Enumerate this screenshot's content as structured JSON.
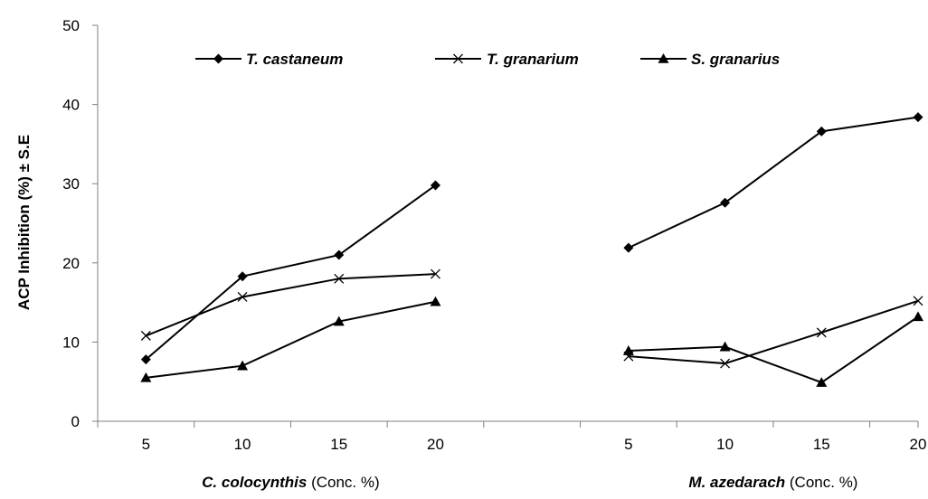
{
  "chart_data": {
    "type": "line",
    "ylabel": "ACP Inhibition (%) ± S.E",
    "ylim": [
      0,
      50
    ],
    "yticks": [
      0,
      10,
      20,
      30,
      40,
      50
    ],
    "grid": false,
    "legend_position": "top",
    "groups": [
      {
        "label_italic": "C. colocynthis",
        "label_rest": " (Conc. %)",
        "categories": [
          "5",
          "10",
          "15",
          "20"
        ],
        "series": [
          {
            "name": "T. castaneum",
            "marker": "diamond",
            "values": [
              7.8,
              18.3,
              21.0,
              29.8
            ]
          },
          {
            "name": "T. granarium",
            "marker": "x",
            "values": [
              10.8,
              15.7,
              18.0,
              18.6
            ]
          },
          {
            "name": "S. granarius",
            "marker": "triangle",
            "values": [
              5.5,
              7.0,
              12.6,
              15.1
            ]
          }
        ]
      },
      {
        "label_italic": "M. azedarach",
        "label_rest": " (Conc. %)",
        "categories": [
          "5",
          "10",
          "15",
          "20"
        ],
        "series": [
          {
            "name": "T. castaneum",
            "marker": "diamond",
            "values": [
              21.9,
              27.6,
              36.6,
              38.4
            ]
          },
          {
            "name": "T. granarium",
            "marker": "x",
            "values": [
              8.2,
              7.3,
              11.2,
              15.2
            ]
          },
          {
            "name": "S. granarius",
            "marker": "triangle",
            "values": [
              8.9,
              9.4,
              4.9,
              13.2
            ]
          }
        ]
      }
    ]
  }
}
